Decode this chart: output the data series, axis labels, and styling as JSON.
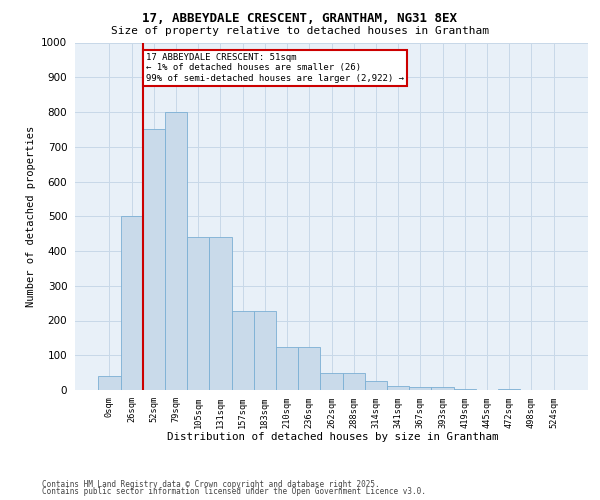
{
  "title_line1": "17, ABBEYDALE CRESCENT, GRANTHAM, NG31 8EX",
  "title_line2": "Size of property relative to detached houses in Grantham",
  "xlabel": "Distribution of detached houses by size in Grantham",
  "ylabel": "Number of detached properties",
  "bar_labels": [
    "0sqm",
    "26sqm",
    "52sqm",
    "79sqm",
    "105sqm",
    "131sqm",
    "157sqm",
    "183sqm",
    "210sqm",
    "236sqm",
    "262sqm",
    "288sqm",
    "314sqm",
    "341sqm",
    "367sqm",
    "393sqm",
    "419sqm",
    "445sqm",
    "472sqm",
    "498sqm",
    "524sqm"
  ],
  "bar_values": [
    40,
    500,
    750,
    800,
    440,
    440,
    228,
    228,
    125,
    125,
    50,
    50,
    25,
    12,
    8,
    8,
    4,
    0,
    4,
    0,
    0
  ],
  "bar_color": "#c9daea",
  "bar_edge_color": "#7bafd4",
  "grid_color": "#c8d8e8",
  "background_color": "#e8f0f8",
  "annotation_text": "17 ABBEYDALE CRESCENT: 51sqm\n← 1% of detached houses are smaller (26)\n99% of semi-detached houses are larger (2,922) →",
  "annotation_box_facecolor": "#ffffff",
  "annotation_border_color": "#cc0000",
  "redline_x": 1.5,
  "ylim": [
    0,
    1000
  ],
  "yticks": [
    0,
    100,
    200,
    300,
    400,
    500,
    600,
    700,
    800,
    900,
    1000
  ],
  "footer_line1": "Contains HM Land Registry data © Crown copyright and database right 2025.",
  "footer_line2": "Contains public sector information licensed under the Open Government Licence v3.0."
}
